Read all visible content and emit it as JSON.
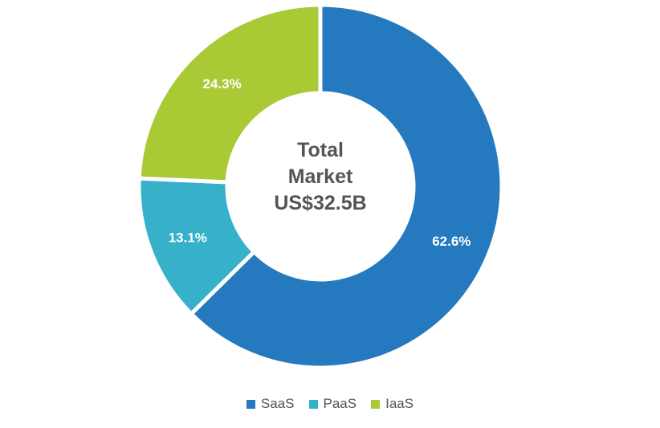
{
  "chart_data": {
    "type": "pie",
    "variant": "donut",
    "center_label": [
      "Total",
      "Market",
      "US$32.5B"
    ],
    "slices": [
      {
        "name": "SaaS",
        "value": 62.6,
        "label": "62.6%",
        "color": "#2479bf"
      },
      {
        "name": "PaaS",
        "value": 13.1,
        "label": "13.1%",
        "color": "#37b0ca"
      },
      {
        "name": "IaaS",
        "value": 24.3,
        "label": "24.3%",
        "color": "#a9c935"
      }
    ],
    "start": "12 o'clock",
    "direction": "clockwise",
    "legend_position": "bottom-center"
  }
}
